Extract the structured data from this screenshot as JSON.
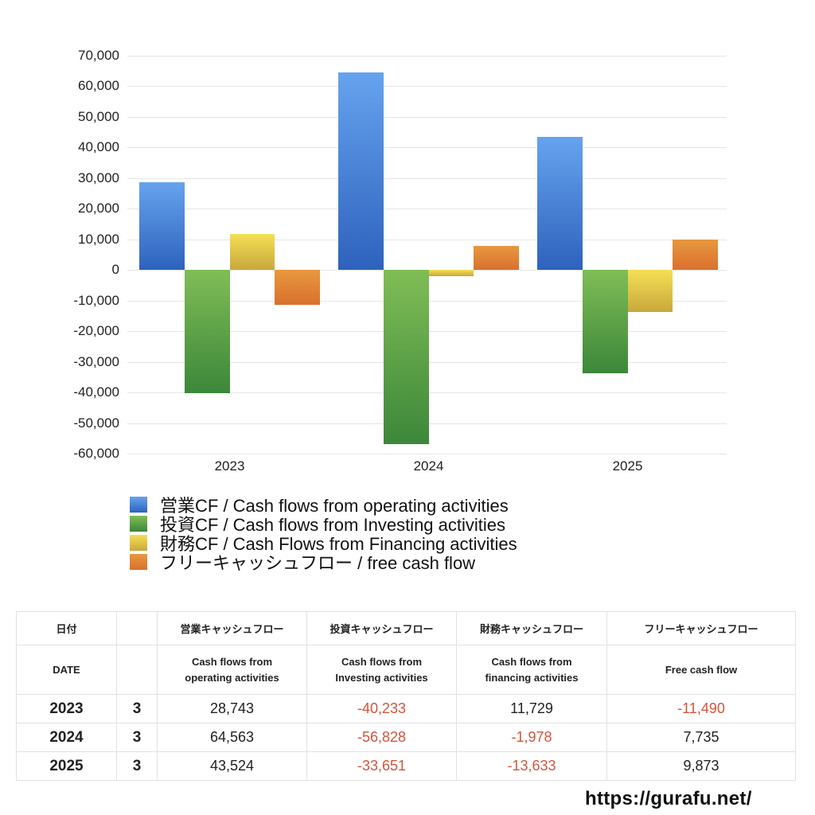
{
  "chart_data": {
    "type": "bar",
    "title": "",
    "xlabel": "",
    "ylabel": "",
    "categories": [
      "2023",
      "2024",
      "2025"
    ],
    "series": [
      {
        "name": "営業CF / Cash flows from operating activities",
        "values": [
          28743,
          64563,
          43524
        ],
        "color_top": "#66a3ee",
        "color_bottom": "#2e62bd"
      },
      {
        "name": "投資CF / Cash flows from Investing activities",
        "values": [
          -40233,
          -56828,
          -33651
        ],
        "color_top": "#80bd56",
        "color_bottom": "#3c873a"
      },
      {
        "name": "財務CF / Cash Flows from Financing activities",
        "values": [
          11729,
          -1978,
          -13633
        ],
        "color_top": "#f5df55",
        "color_bottom": "#c8a83c"
      },
      {
        "name": "フリーキャッシュフロー / free cash flow",
        "values": [
          -11490,
          7735,
          9873
        ],
        "color_top": "#e8983f",
        "color_bottom": "#d9702e"
      }
    ],
    "ylim": [
      -60000,
      70000
    ],
    "yticks": [
      "70,000",
      "60,000",
      "50,000",
      "40,000",
      "30,000",
      "20,000",
      "10,000",
      "0",
      "-10,000",
      "-20,000",
      "-30,000",
      "-40,000",
      "-50,000",
      "-60,000"
    ],
    "grid": true,
    "legend_position": "bottom"
  },
  "table": {
    "header_jp": [
      "日付",
      "",
      "営業キャッシュフロー",
      "投資キャッシュフロー",
      "財務キャッシュフロー",
      "フリーキャッシュフロー"
    ],
    "header_en": [
      "DATE",
      "",
      "Cash flows from\noperating activities",
      "Cash flows from\nInvesting activities",
      "Cash flows from\nfinancing activities",
      "Free cash flow"
    ],
    "rows": [
      {
        "year": "2023",
        "month": "3",
        "operating": "28,743",
        "investing": "-40,233",
        "financing": "11,729",
        "free": "-11,490"
      },
      {
        "year": "2024",
        "month": "3",
        "operating": "64,563",
        "investing": "-56,828",
        "financing": "-1,978",
        "free": "7,735"
      },
      {
        "year": "2025",
        "month": "3",
        "operating": "43,524",
        "investing": "-33,651",
        "financing": "-13,633",
        "free": "9,873"
      }
    ],
    "negative_color": "#d9533b"
  },
  "footer": {
    "url_text": "https://gurafu.net/"
  }
}
